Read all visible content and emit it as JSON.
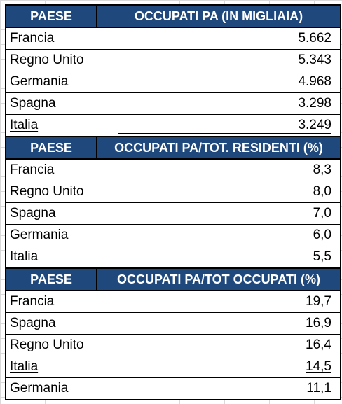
{
  "sections": [
    {
      "header": {
        "country": "PAESE",
        "metric": "OCCUPATI PA (IN MIGLIAIA)"
      },
      "rows": [
        {
          "country": "Francia",
          "value": "5.662"
        },
        {
          "country": "Regno Unito",
          "value": "5.343"
        },
        {
          "country": "Germania",
          "value": "4.968"
        },
        {
          "country": "Spagna",
          "value": "3.298"
        },
        {
          "country": "Italia",
          "value": "3.249"
        }
      ]
    },
    {
      "header": {
        "country": "PAESE",
        "metric": "OCCUPATI PA/TOT. RESIDENTI (%)"
      },
      "rows": [
        {
          "country": "Francia",
          "value": "8,3"
        },
        {
          "country": "Regno Unito",
          "value": "8,0"
        },
        {
          "country": "Spagna",
          "value": "7,0"
        },
        {
          "country": "Germania",
          "value": "6,0"
        },
        {
          "country": "Italia",
          "value": "5,5"
        }
      ]
    },
    {
      "header": {
        "country": "PAESE",
        "metric": "OCCUPATI PA/TOT OCCUPATI (%)"
      },
      "rows": [
        {
          "country": "Francia",
          "value": "19,7"
        },
        {
          "country": "Spagna",
          "value": "16,9"
        },
        {
          "country": "Regno Unito",
          "value": "16,4"
        },
        {
          "country": "Italia",
          "value": "14,5"
        },
        {
          "country": "Germania",
          "value": "11,1"
        }
      ]
    }
  ],
  "colors": {
    "header_bg": "#1f497d",
    "header_text": "#ffffff"
  }
}
